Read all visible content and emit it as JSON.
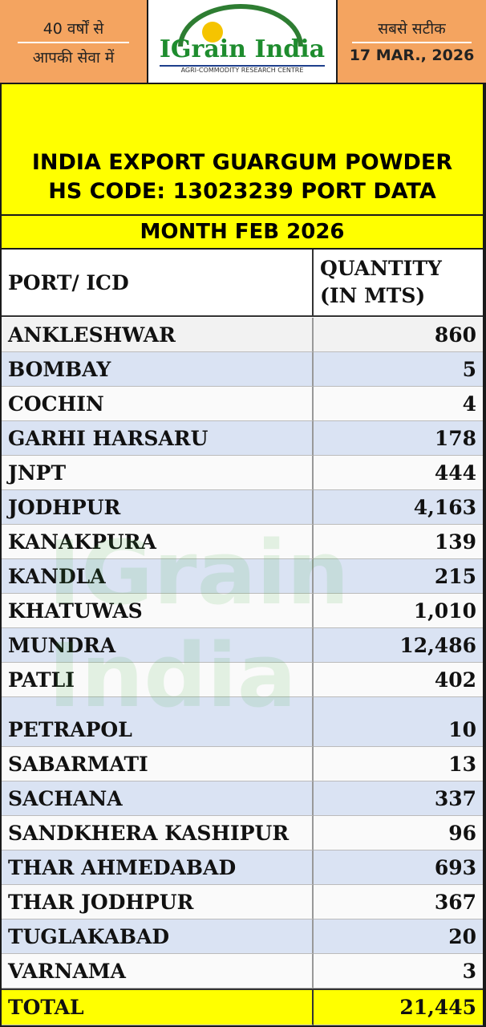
{
  "header": {
    "left_line1": "40 वर्षों से",
    "left_line2": "आपकी सेवा में",
    "logo": "IGrain India",
    "logo_tagline": "AGRI-COMMODITY RESEARCH CENTRE",
    "right_line1": "सबसे सटीक",
    "date": "17 MAR., 2026"
  },
  "title": {
    "line1": "INDIA EXPORT GUARGUM POWDER",
    "line2": "HS CODE: 13023239 PORT DATA",
    "month": "MONTH FEB 2026"
  },
  "watermark": "IGrain India",
  "table": {
    "columns": [
      "PORT/ ICD",
      "QUANTITY (IN MTS)"
    ],
    "rows": [
      [
        "ANKLESHWAR",
        "860"
      ],
      [
        "BOMBAY",
        "5"
      ],
      [
        "COCHIN",
        "4"
      ],
      [
        "GARHI HARSARU",
        "178"
      ],
      [
        "JNPT",
        "444"
      ],
      [
        "JODHPUR",
        "4,163"
      ],
      [
        "KANAKPURA",
        "139"
      ],
      [
        "KANDLA",
        "215"
      ],
      [
        "KHATUWAS",
        "1,010"
      ],
      [
        "MUNDRA",
        "12,486"
      ],
      [
        "PATLI",
        "402"
      ],
      [
        "PETRAPOL",
        "10"
      ],
      [
        "SABARMATI",
        "13"
      ],
      [
        "SACHANA",
        "337"
      ],
      [
        "SANDKHERA KASHIPUR",
        "96"
      ],
      [
        "THAR AHMEDABAD",
        "693"
      ],
      [
        "THAR JODHPUR",
        "367"
      ],
      [
        "TUGLAKABAD",
        "20"
      ],
      [
        "VARNAMA",
        "3"
      ]
    ],
    "total": [
      "TOTAL",
      "21,445"
    ]
  }
}
